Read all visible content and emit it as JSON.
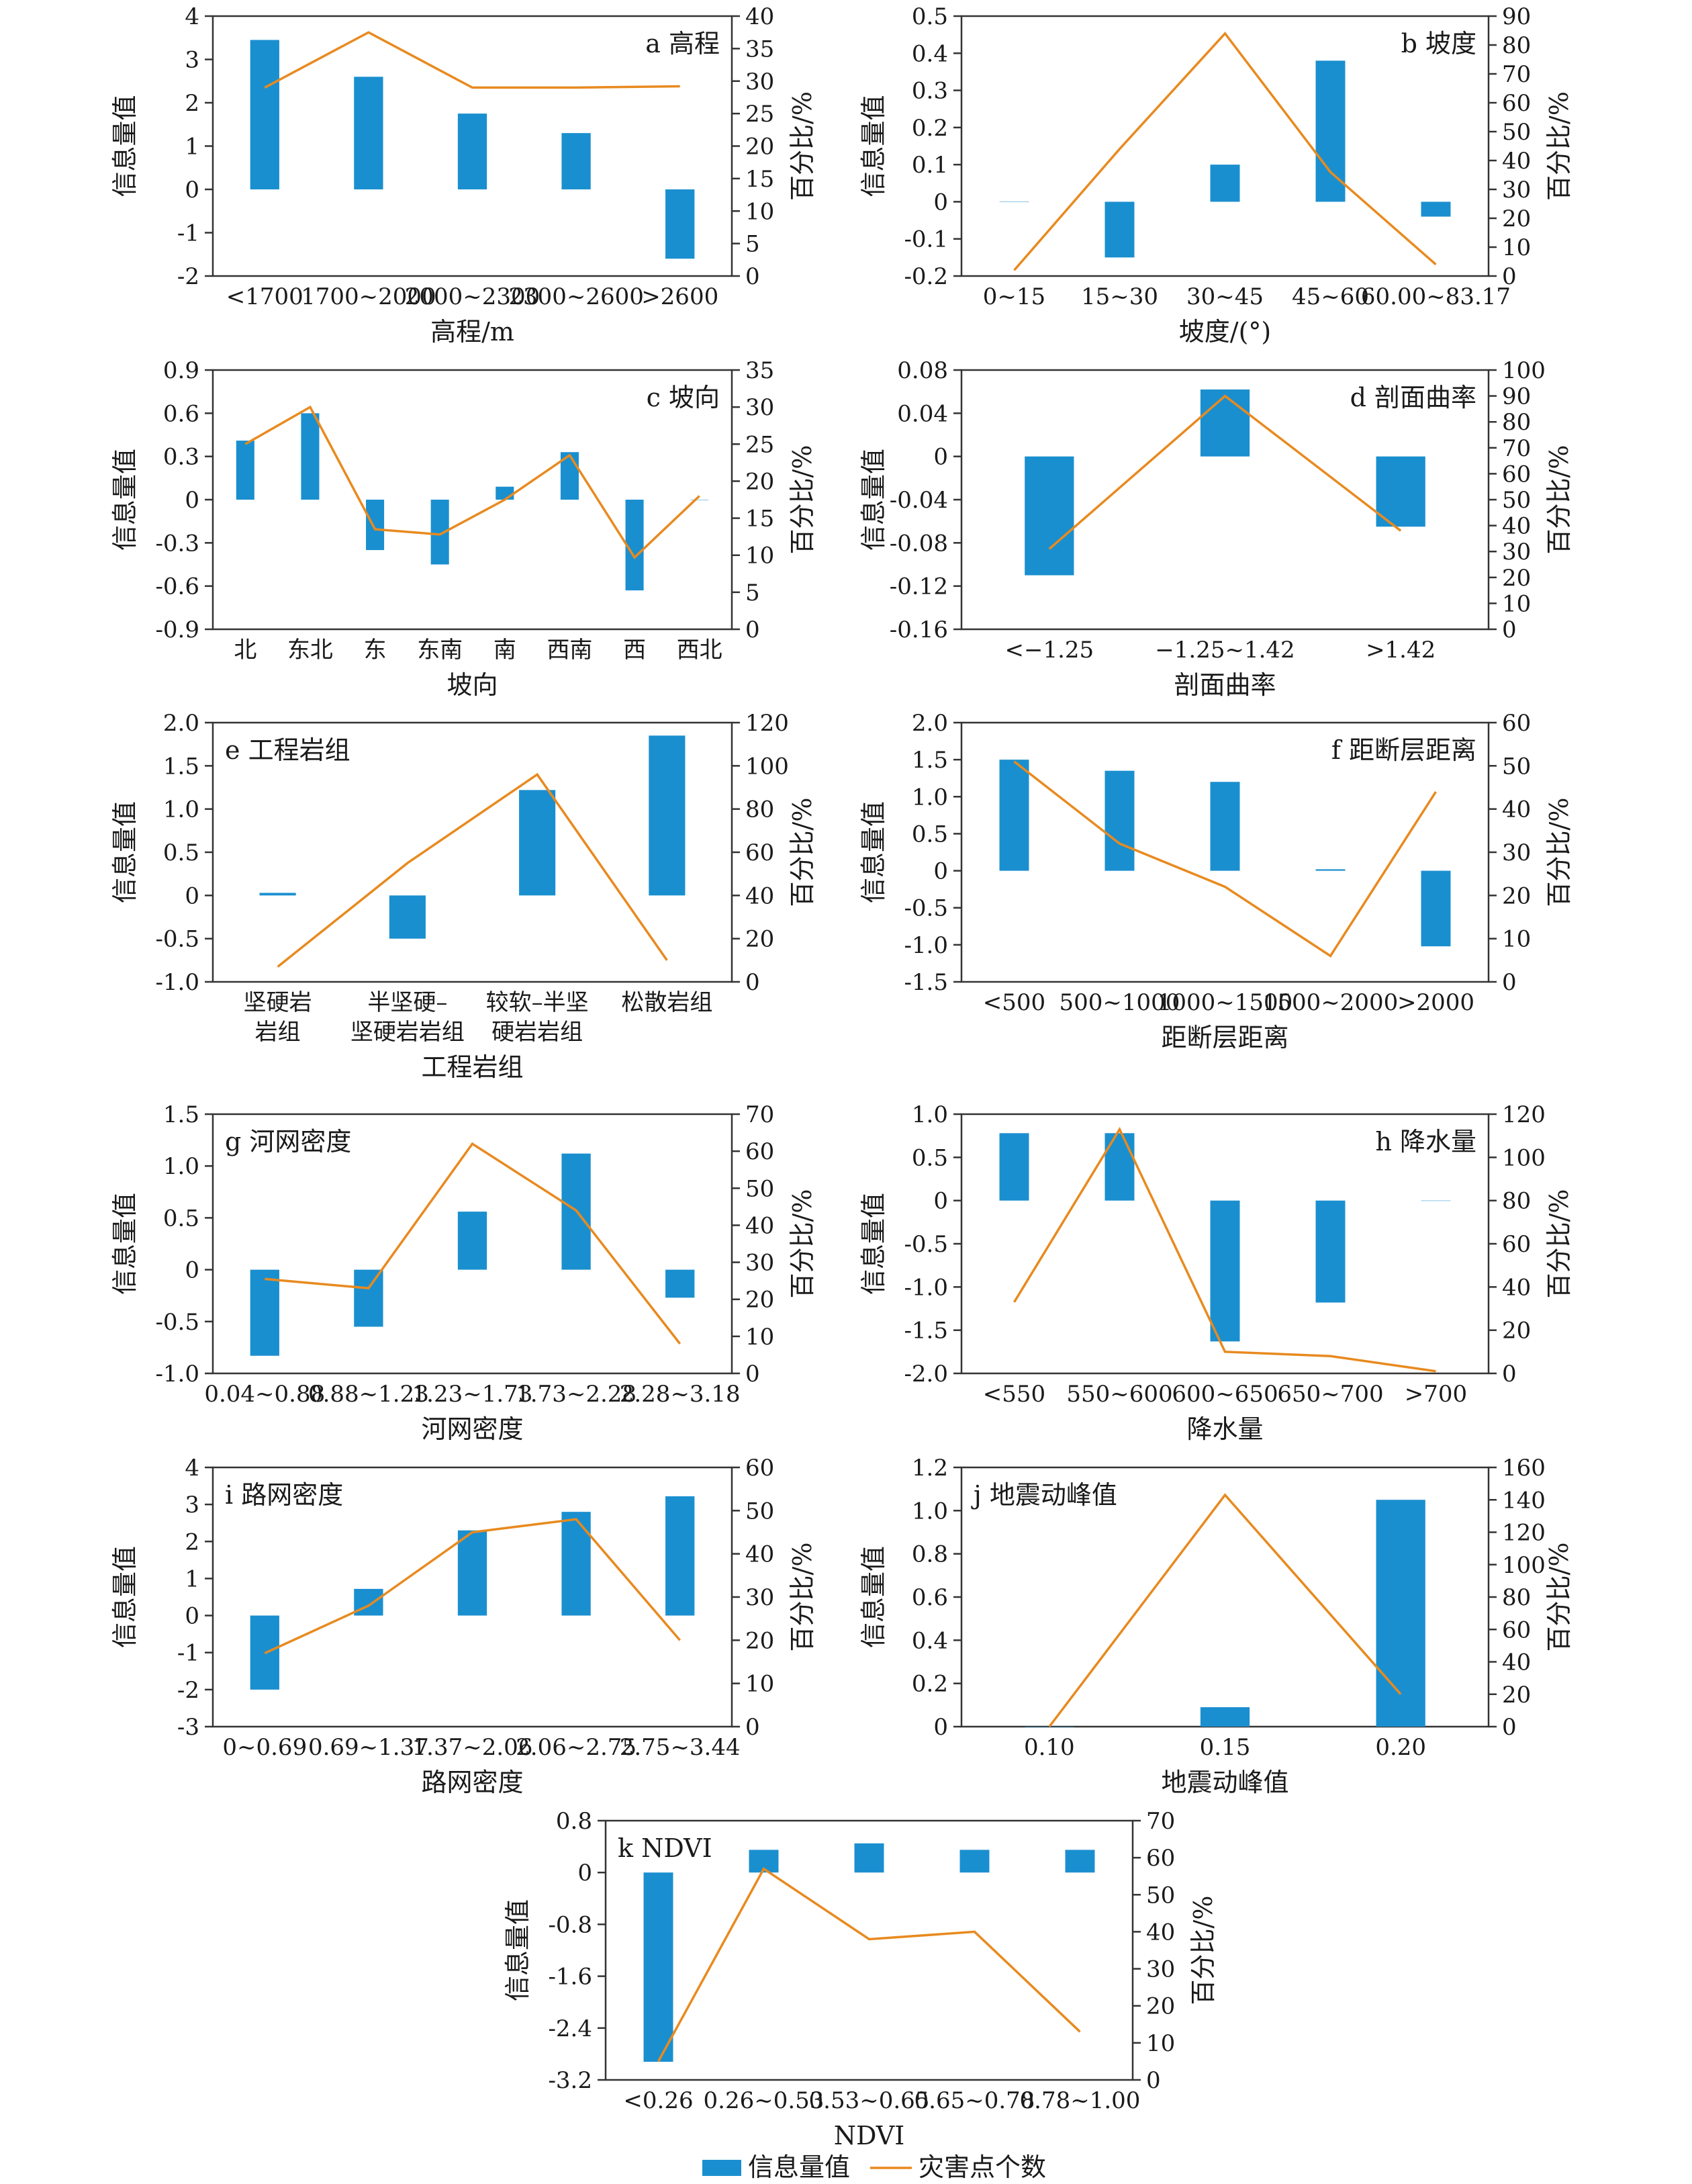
{
  "figure": {
    "colors": {
      "bar": "#1a8fcf",
      "line": "#e88a1f",
      "axis": "#333333"
    },
    "legend": {
      "bar_label": "信息量值",
      "line_label": "灾害点个数"
    }
  },
  "chart_data": [
    {
      "id": "a",
      "type": "bar+line",
      "title": "a 高程",
      "title_pos": "right",
      "xlabel": "高程/m",
      "ylabel": "信息量值",
      "y2label": "百分比/%",
      "categories": [
        [
          "<1700"
        ],
        [
          "1700~2000"
        ],
        [
          "2000~2300"
        ],
        [
          "2300~2600"
        ],
        [
          ">2600"
        ]
      ],
      "ylim": [
        -2,
        4
      ],
      "yticks": [
        "-2",
        "-1",
        "0",
        "1",
        "2",
        "3",
        "4"
      ],
      "yticks_num": [
        -2,
        -1,
        0,
        1,
        2,
        3,
        4
      ],
      "y2lim": [
        0,
        40
      ],
      "y2ticks": [
        "0",
        "5",
        "10",
        "15",
        "20",
        "25",
        "30",
        "35",
        "40"
      ],
      "y2ticks_num": [
        0,
        5,
        10,
        15,
        20,
        25,
        30,
        35,
        40
      ],
      "series": [
        {
          "name": "信息量值",
          "kind": "bar",
          "values": [
            3.45,
            2.6,
            1.75,
            1.3,
            -1.6
          ]
        },
        {
          "name": "灾害点个数",
          "kind": "line",
          "values": [
            29,
            37.5,
            29,
            29,
            29.2
          ]
        }
      ]
    },
    {
      "id": "b",
      "type": "bar+line",
      "title": "b 坡度",
      "title_pos": "right",
      "xlabel": "坡度/(°)",
      "ylabel": "信息量值",
      "y2label": "百分比/%",
      "categories": [
        [
          "0~15"
        ],
        [
          "15~30"
        ],
        [
          "30~45"
        ],
        [
          "45~60"
        ],
        [
          "60.00~83.17"
        ]
      ],
      "ylim": [
        -0.2,
        0.5
      ],
      "yticks": [
        "-0.2",
        "-0.1",
        "0",
        "0.1",
        "0.2",
        "0.3",
        "0.4",
        "0.5"
      ],
      "yticks_num": [
        -0.2,
        -0.1,
        0,
        0.1,
        0.2,
        0.3,
        0.4,
        0.5
      ],
      "y2lim": [
        0,
        90
      ],
      "y2ticks": [
        "0",
        "10",
        "20",
        "30",
        "40",
        "50",
        "60",
        "70",
        "80",
        "90"
      ],
      "y2ticks_num": [
        0,
        10,
        20,
        30,
        40,
        50,
        60,
        70,
        80,
        90
      ],
      "series": [
        {
          "name": "信息量值",
          "kind": "bar",
          "values": [
            0.0,
            -0.15,
            0.1,
            0.38,
            -0.04
          ]
        },
        {
          "name": "灾害点个数",
          "kind": "line",
          "values": [
            2,
            44,
            84,
            36,
            4
          ]
        }
      ]
    },
    {
      "id": "c",
      "type": "bar+line",
      "title": "c 坡向",
      "title_pos": "right",
      "xlabel": "坡向",
      "ylabel": "信息量值",
      "y2label": "百分比/%",
      "categories": [
        [
          "北"
        ],
        [
          "东北"
        ],
        [
          "东"
        ],
        [
          "东南"
        ],
        [
          "南"
        ],
        [
          "西南"
        ],
        [
          "西"
        ],
        [
          "西北"
        ]
      ],
      "ylim": [
        -0.9,
        0.9
      ],
      "yticks": [
        "-0.9",
        "-0.6",
        "-0.3",
        "0",
        "0.3",
        "0.6",
        "0.9"
      ],
      "yticks_num": [
        -0.9,
        -0.6,
        -0.3,
        0,
        0.3,
        0.6,
        0.9
      ],
      "y2lim": [
        0,
        35
      ],
      "y2ticks": [
        "0",
        "5",
        "10",
        "15",
        "20",
        "25",
        "30",
        "35"
      ],
      "y2ticks_num": [
        0,
        5,
        10,
        15,
        20,
        25,
        30,
        35
      ],
      "series": [
        {
          "name": "信息量值",
          "kind": "bar",
          "values": [
            0.41,
            0.6,
            -0.35,
            -0.45,
            0.09,
            0.33,
            -0.63,
            0.0
          ]
        },
        {
          "name": "灾害点个数",
          "kind": "line",
          "values": [
            25,
            30,
            13.5,
            12.8,
            17.5,
            23.5,
            9.7,
            18
          ]
        }
      ]
    },
    {
      "id": "d",
      "type": "bar+line",
      "title": "d 剖面曲率",
      "title_pos": "right",
      "xlabel": "剖面曲率",
      "ylabel": "信息量值",
      "y2label": "百分比/%",
      "categories": [
        [
          "<−1.25"
        ],
        [
          "−1.25~1.42"
        ],
        [
          ">1.42"
        ]
      ],
      "ylim": [
        -0.16,
        0.08
      ],
      "yticks": [
        "-0.16",
        "-0.12",
        "-0.08",
        "-0.04",
        "0",
        "0.04",
        "0.08"
      ],
      "yticks_num": [
        -0.16,
        -0.12,
        -0.08,
        -0.04,
        0,
        0.04,
        0.08
      ],
      "y2lim": [
        0,
        100
      ],
      "y2ticks": [
        "0",
        "10",
        "20",
        "30",
        "40",
        "50",
        "60",
        "70",
        "80",
        "90",
        "100"
      ],
      "y2ticks_num": [
        0,
        10,
        20,
        30,
        40,
        50,
        60,
        70,
        80,
        90,
        100
      ],
      "series": [
        {
          "name": "信息量值",
          "kind": "bar",
          "values": [
            -0.11,
            0.062,
            -0.065
          ]
        },
        {
          "name": "灾害点个数",
          "kind": "line",
          "values": [
            31,
            90,
            38
          ]
        }
      ]
    },
    {
      "id": "e",
      "type": "bar+line",
      "title": "e 工程岩组",
      "title_pos": "left",
      "xlabel": "工程岩组",
      "ylabel": "信息量值",
      "y2label": "百分比/%",
      "categories": [
        [
          "坚硬岩",
          "岩组"
        ],
        [
          "半坚硬–",
          "坚硬岩岩组"
        ],
        [
          "较软–半坚",
          "硬岩岩组"
        ],
        [
          "松散岩组"
        ]
      ],
      "ylim": [
        -1.0,
        2.0
      ],
      "yticks": [
        "-1.0",
        "-0.5",
        "0",
        "0.5",
        "1.0",
        "1.5",
        "2.0"
      ],
      "yticks_num": [
        -1,
        -0.5,
        0,
        0.5,
        1,
        1.5,
        2
      ],
      "y2lim": [
        0,
        120
      ],
      "y2ticks": [
        "0",
        "20",
        "40",
        "60",
        "80",
        "100",
        "120"
      ],
      "y2ticks_num": [
        0,
        20,
        40,
        60,
        80,
        100,
        120
      ],
      "series": [
        {
          "name": "信息量值",
          "kind": "bar",
          "values": [
            0.03,
            -0.5,
            1.22,
            1.85
          ]
        },
        {
          "name": "灾害点个数",
          "kind": "line",
          "values": [
            7,
            55,
            96,
            10
          ]
        }
      ]
    },
    {
      "id": "f",
      "type": "bar+line",
      "title": "f 距断层距离",
      "title_pos": "right",
      "xlabel": "距断层距离",
      "ylabel": "信息量值",
      "y2label": "百分比/%",
      "categories": [
        [
          "<500"
        ],
        [
          "500~1000"
        ],
        [
          "1000~1500"
        ],
        [
          "1500~2000"
        ],
        [
          ">2000"
        ]
      ],
      "ylim": [
        -1.5,
        2.0
      ],
      "yticks": [
        "-1.5",
        "-1.0",
        "-0.5",
        "0",
        "0.5",
        "1.0",
        "1.5",
        "2.0"
      ],
      "yticks_num": [
        -1.5,
        -1,
        -0.5,
        0,
        0.5,
        1,
        1.5,
        2
      ],
      "y2lim": [
        0,
        60
      ],
      "y2ticks": [
        "0",
        "10",
        "20",
        "30",
        "40",
        "50",
        "60"
      ],
      "y2ticks_num": [
        0,
        10,
        20,
        30,
        40,
        50,
        60
      ],
      "series": [
        {
          "name": "信息量值",
          "kind": "bar",
          "values": [
            1.5,
            1.35,
            1.2,
            0.02,
            -1.02
          ]
        },
        {
          "name": "灾害点个数",
          "kind": "line",
          "values": [
            51,
            32,
            22,
            6,
            44
          ]
        }
      ]
    },
    {
      "id": "g",
      "type": "bar+line",
      "title": "g 河网密度",
      "title_pos": "left",
      "xlabel": "河网密度",
      "ylabel": "信息量值",
      "y2label": "百分比/%",
      "categories": [
        [
          "0.04~0.88"
        ],
        [
          "0.88~1.23"
        ],
        [
          "1.23~1.73"
        ],
        [
          "1.73~2.28"
        ],
        [
          "2.28~3.18"
        ]
      ],
      "ylim": [
        -1.0,
        1.5
      ],
      "yticks": [
        "-1.0",
        "-0.5",
        "0",
        "0.5",
        "1.0",
        "1.5"
      ],
      "yticks_num": [
        -1,
        -0.5,
        0,
        0.5,
        1,
        1.5
      ],
      "y2lim": [
        0,
        70
      ],
      "y2ticks": [
        "0",
        "10",
        "20",
        "30",
        "40",
        "50",
        "60",
        "70"
      ],
      "y2ticks_num": [
        0,
        10,
        20,
        30,
        40,
        50,
        60,
        70
      ],
      "series": [
        {
          "name": "信息量值",
          "kind": "bar",
          "values": [
            -0.83,
            -0.55,
            0.56,
            1.12,
            -0.27
          ]
        },
        {
          "name": "灾害点个数",
          "kind": "line",
          "values": [
            25.5,
            23,
            62,
            44,
            8
          ]
        }
      ]
    },
    {
      "id": "h",
      "type": "bar+line",
      "title": "h 降水量",
      "title_pos": "right",
      "xlabel": "降水量",
      "ylabel": "信息量值",
      "y2label": "百分比/%",
      "categories": [
        [
          "<550"
        ],
        [
          "550~600"
        ],
        [
          "600~650"
        ],
        [
          "650~700"
        ],
        [
          ">700"
        ]
      ],
      "ylim": [
        -2.0,
        1.0
      ],
      "yticks": [
        "-2.0",
        "-1.5",
        "-1.0",
        "-0.5",
        "0",
        "0.5",
        "1.0"
      ],
      "yticks_num": [
        -2,
        -1.5,
        -1,
        -0.5,
        0,
        0.5,
        1
      ],
      "y2lim": [
        0,
        120
      ],
      "y2ticks": [
        "0",
        "20",
        "40",
        "60",
        "80",
        "100",
        "120"
      ],
      "y2ticks_num": [
        0,
        20,
        40,
        60,
        80,
        100,
        120
      ],
      "series": [
        {
          "name": "信息量值",
          "kind": "bar",
          "values": [
            0.78,
            0.78,
            -1.63,
            -1.18,
            0.0
          ]
        },
        {
          "name": "灾害点个数",
          "kind": "line",
          "values": [
            33,
            113,
            10,
            8,
            1
          ]
        }
      ]
    },
    {
      "id": "i",
      "type": "bar+line",
      "title": "i 路网密度",
      "title_pos": "left",
      "xlabel": "路网密度",
      "ylabel": "信息量值",
      "y2label": "百分比/%",
      "categories": [
        [
          "0~0.69"
        ],
        [
          "0.69~1.37"
        ],
        [
          "1.37~2.06"
        ],
        [
          "2.06~2.75"
        ],
        [
          "2.75~3.44"
        ]
      ],
      "ylim": [
        -3,
        4
      ],
      "yticks": [
        "-3",
        "-2",
        "-1",
        "0",
        "1",
        "2",
        "3",
        "4"
      ],
      "yticks_num": [
        -3,
        -2,
        -1,
        0,
        1,
        2,
        3,
        4
      ],
      "y2lim": [
        0,
        60
      ],
      "y2ticks": [
        "0",
        "10",
        "20",
        "30",
        "40",
        "50",
        "60"
      ],
      "y2ticks_num": [
        0,
        10,
        20,
        30,
        40,
        50,
        60
      ],
      "series": [
        {
          "name": "信息量值",
          "kind": "bar",
          "values": [
            -2.0,
            0.72,
            2.3,
            2.8,
            3.22
          ]
        },
        {
          "name": "灾害点个数",
          "kind": "line",
          "values": [
            17,
            28,
            45,
            48,
            20
          ]
        }
      ]
    },
    {
      "id": "j",
      "type": "bar+line",
      "title": "j 地震动峰值",
      "title_pos": "left",
      "xlabel": "地震动峰值",
      "ylabel": "信息量值",
      "y2label": "百分比/%",
      "categories": [
        [
          "0.10"
        ],
        [
          "0.15"
        ],
        [
          "0.20"
        ]
      ],
      "ylim": [
        0,
        1.2
      ],
      "yticks": [
        "0",
        "0.2",
        "0.4",
        "0.6",
        "0.8",
        "1.0",
        "1.2"
      ],
      "yticks_num": [
        0,
        0.2,
        0.4,
        0.6,
        0.8,
        1,
        1.2
      ],
      "y2lim": [
        0,
        160
      ],
      "y2ticks": [
        "0",
        "20",
        "40",
        "60",
        "80",
        "100",
        "120",
        "140",
        "160"
      ],
      "y2ticks_num": [
        0,
        20,
        40,
        60,
        80,
        100,
        120,
        140,
        160
      ],
      "series": [
        {
          "name": "信息量值",
          "kind": "bar",
          "values": [
            0.0,
            0.09,
            1.05
          ]
        },
        {
          "name": "灾害点个数",
          "kind": "line",
          "values": [
            0,
            143,
            20
          ]
        }
      ]
    },
    {
      "id": "k",
      "type": "bar+line",
      "title": "k NDVI",
      "title_pos": "left",
      "xlabel": "NDVI",
      "ylabel": "信息量值",
      "y2label": "百分比/%",
      "categories": [
        [
          "<0.26"
        ],
        [
          "0.26~0.53"
        ],
        [
          "0.53~0.65"
        ],
        [
          "0.65~0.78"
        ],
        [
          "0.78~1.00"
        ]
      ],
      "ylim": [
        -3.2,
        0.8
      ],
      "yticks": [
        "-3.2",
        "-2.4",
        "-1.6",
        "-0.8",
        "0",
        "0.8"
      ],
      "yticks_num": [
        -3.2,
        -2.4,
        -1.6,
        -0.8,
        0,
        0.8
      ],
      "y2lim": [
        0,
        70
      ],
      "y2ticks": [
        "0",
        "10",
        "20",
        "30",
        "40",
        "50",
        "60",
        "70"
      ],
      "y2ticks_num": [
        0,
        10,
        20,
        30,
        40,
        50,
        60,
        70
      ],
      "series": [
        {
          "name": "信息量值",
          "kind": "bar",
          "values": [
            -2.92,
            0.35,
            0.45,
            0.35,
            0.35
          ]
        },
        {
          "name": "灾害点个数",
          "kind": "line",
          "values": [
            5,
            57,
            38,
            40,
            13
          ]
        }
      ]
    }
  ]
}
